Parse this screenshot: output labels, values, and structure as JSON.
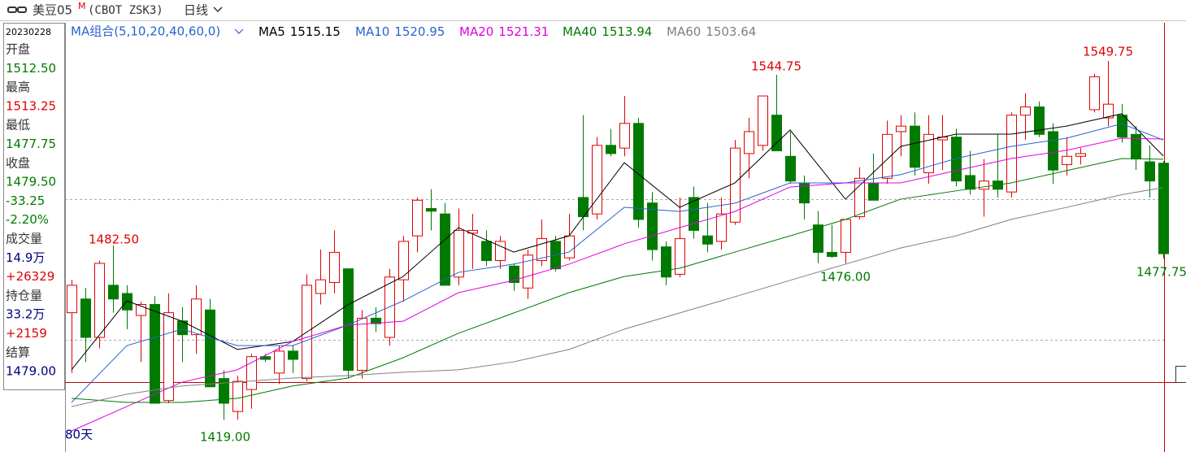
{
  "chart_data": {
    "type": "candlestick",
    "title": "美豆05",
    "title_sup": "M",
    "symbol": "(CBOT ZSK3)",
    "period": "日线",
    "ma_group": "MA组合(5,10,20,40,60,0)",
    "range_label": "80天",
    "ylim": [
      1409.6,
      1563.68
    ],
    "up_color": "#e00000",
    "down_color": "#007a00",
    "candles": {
      "open": [
        1458,
        1463,
        1449,
        1468,
        1465,
        1457,
        1461,
        1426,
        1455,
        1450,
        1459,
        1434,
        1422,
        1430,
        1442,
        1436,
        1444,
        1434,
        1465,
        1469,
        1474,
        1437,
        1456,
        1449,
        1470,
        1486,
        1496,
        1494,
        1471,
        1487,
        1484,
        1477,
        1475,
        1467,
        1477,
        1484,
        1478,
        1500,
        1494,
        1519,
        1518,
        1527,
        1498,
        1482,
        1472,
        1500,
        1486,
        1484,
        1491,
        1516,
        1519,
        1530,
        1515,
        1505,
        1490,
        1480,
        1480,
        1493,
        1505,
        1507,
        1524,
        1526,
        1509,
        1521,
        1522,
        1508,
        1503,
        1506,
        1502,
        1530,
        1533,
        1524,
        1512,
        1515,
        1532,
        1529,
        1530,
        1523,
        1513,
        1512.5
      ],
      "high": [
        1470,
        1467,
        1477,
        1482.5,
        1468,
        1462,
        1464,
        1465,
        1460,
        1468,
        1463,
        1437,
        1435,
        1443,
        1443,
        1446,
        1446,
        1472,
        1481,
        1488,
        1474,
        1459,
        1460,
        1474,
        1486,
        1500,
        1503,
        1498,
        1496,
        1494,
        1488,
        1486,
        1476,
        1481,
        1492,
        1486,
        1494,
        1530,
        1522,
        1525,
        1537,
        1529,
        1502,
        1484,
        1500,
        1504,
        1498,
        1500,
        1521,
        1529,
        1537,
        1544.75,
        1524,
        1508,
        1495,
        1490,
        1490,
        1511,
        1516,
        1528,
        1530,
        1531,
        1530,
        1530,
        1525,
        1517,
        1514,
        1523,
        1531,
        1538,
        1535,
        1527,
        1522,
        1518,
        1545,
        1549.75,
        1534,
        1526,
        1519,
        1513.25
      ],
      "low": [
        1436,
        1440,
        1445,
        1458,
        1452,
        1440,
        1425,
        1425,
        1440,
        1443,
        1431,
        1419,
        1419,
        1423,
        1440,
        1432,
        1436,
        1433,
        1461,
        1465,
        1434,
        1434,
        1451,
        1446,
        1462,
        1480,
        1488,
        1469,
        1468,
        1474,
        1475,
        1474,
        1466,
        1463,
        1475,
        1473,
        1477,
        1488,
        1492,
        1515,
        1515,
        1489,
        1477,
        1468,
        1471,
        1485,
        1480,
        1481,
        1490,
        1507,
        1517,
        1520,
        1505,
        1492,
        1476,
        1478,
        1476,
        1492,
        1499,
        1505,
        1515,
        1508,
        1505,
        1510,
        1504,
        1501,
        1493,
        1500,
        1500,
        1521,
        1522,
        1505,
        1508,
        1512,
        1531,
        1526,
        1520,
        1510,
        1500,
        1477.75
      ],
      "close": [
        1468,
        1449,
        1476,
        1463,
        1459,
        1461,
        1425,
        1458,
        1450,
        1463,
        1431,
        1425,
        1433,
        1442,
        1441,
        1444,
        1441,
        1468,
        1470,
        1480,
        1437,
        1456,
        1454,
        1471,
        1484,
        1499,
        1495,
        1468,
        1488,
        1488,
        1477,
        1484,
        1469,
        1479,
        1485,
        1474,
        1486,
        1493,
        1519,
        1516,
        1527,
        1492,
        1481,
        1471,
        1485,
        1488,
        1483,
        1494,
        1518,
        1524,
        1537,
        1517,
        1506,
        1498,
        1480,
        1478.5,
        1492,
        1507,
        1499,
        1523,
        1526,
        1511,
        1523,
        1522,
        1506,
        1503,
        1506,
        1503,
        1530,
        1533,
        1523,
        1510,
        1515,
        1516,
        1544,
        1534,
        1522,
        1514,
        1506,
        1479.5
      ]
    },
    "ma_x": [
      0,
      4,
      8,
      12,
      16,
      20,
      24,
      28,
      32,
      36,
      40,
      44,
      48,
      52,
      56,
      60,
      64,
      68,
      72,
      76,
      79
    ],
    "series": [
      {
        "name": "MA5",
        "color": "#000000",
        "values": [
          1437.2,
          1462.3,
          1454.9,
          1444.6,
          1447.5,
          1460.9,
          1471.2,
          1489.0,
          1480.1,
          1486.0,
          1512.7,
          1496.4,
          1505.3,
          1524.6,
          1499.4,
          1518.6,
          1523.1,
          1523.1,
          1526.0,
          1530.5,
          1515.15
        ]
      },
      {
        "name": "MA10",
        "color": "#2a62d0",
        "values": [
          1425.3,
          1446.0,
          1452.0,
          1446.0,
          1446.0,
          1453.5,
          1462.3,
          1472.7,
          1475.7,
          1480.1,
          1496.4,
          1494.9,
          1497.9,
          1505.3,
          1505.3,
          1508.3,
          1514.2,
          1518.6,
          1521.6,
          1526.9,
          1520.95
        ]
      },
      {
        "name": "MA20",
        "color": "#e000e0",
        "values": [
          1414.9,
          1423.8,
          1432.7,
          1437.2,
          1447.5,
          1453.5,
          1454.9,
          1465.3,
          1469.8,
          1475.7,
          1483.1,
          1489.0,
          1494.9,
          1503.8,
          1505.3,
          1505.3,
          1509.8,
          1514.2,
          1517.2,
          1521.6,
          1521.31
        ]
      },
      {
        "name": "MA40",
        "color": "#007a00",
        "values": [
          1426.8,
          1425.3,
          1425.3,
          1426.8,
          1431.3,
          1434.2,
          1441.6,
          1450.5,
          1457.9,
          1465.3,
          1471.2,
          1474.2,
          1480.1,
          1486.0,
          1492.0,
          1499.4,
          1502.4,
          1505.3,
          1509.8,
          1514.2,
          1513.94
        ]
      },
      {
        "name": "MA60",
        "color": "#808080",
        "values": [
          1423.8,
          1428.3,
          1431.3,
          1432.7,
          1434.2,
          1435.1,
          1436.3,
          1437.2,
          1440.1,
          1444.6,
          1452.0,
          1457.9,
          1463.8,
          1469.8,
          1475.7,
          1481.6,
          1486.0,
          1492.0,
          1496.4,
          1501.0,
          1503.64
        ]
      }
    ],
    "annotations": [
      {
        "text": "1482.50",
        "color": "#e00000"
      },
      {
        "text": "1544.75",
        "color": "#e00000"
      },
      {
        "text": "1549.75",
        "color": "#e00000"
      },
      {
        "text": "1419.00",
        "color": "#007a00"
      },
      {
        "text": "1476.00",
        "color": "#007a00"
      },
      {
        "text": "1477.75",
        "color": "#007a00"
      }
    ],
    "info_panel": {
      "date": "20230228",
      "lines": [
        {
          "text": "开盘",
          "color": "#333333"
        },
        {
          "text": "1512.50",
          "color": "#007a00"
        },
        {
          "text": "最高",
          "color": "#333333"
        },
        {
          "text": "1513.25",
          "color": "#e00000"
        },
        {
          "text": "最低",
          "color": "#333333"
        },
        {
          "text": "1477.75",
          "color": "#007a00"
        },
        {
          "text": "收盘",
          "color": "#333333"
        },
        {
          "text": "1479.50",
          "color": "#007a00"
        },
        {
          "text": "-33.25",
          "color": "#007a00"
        },
        {
          "text": "-2.20%",
          "color": "#007a00"
        },
        {
          "text": "成交量",
          "color": "#333333"
        },
        {
          "text": "14.9万",
          "color": "#000080"
        },
        {
          "text": "+26329",
          "color": "#e00000"
        },
        {
          "text": "持仓量",
          "color": "#333333"
        },
        {
          "text": "33.2万",
          "color": "#000080"
        },
        {
          "text": "+2159",
          "color": "#e00000"
        },
        {
          "text": "结算",
          "color": "#333333"
        },
        {
          "text": "1479.00",
          "color": "#000080"
        }
      ]
    }
  }
}
